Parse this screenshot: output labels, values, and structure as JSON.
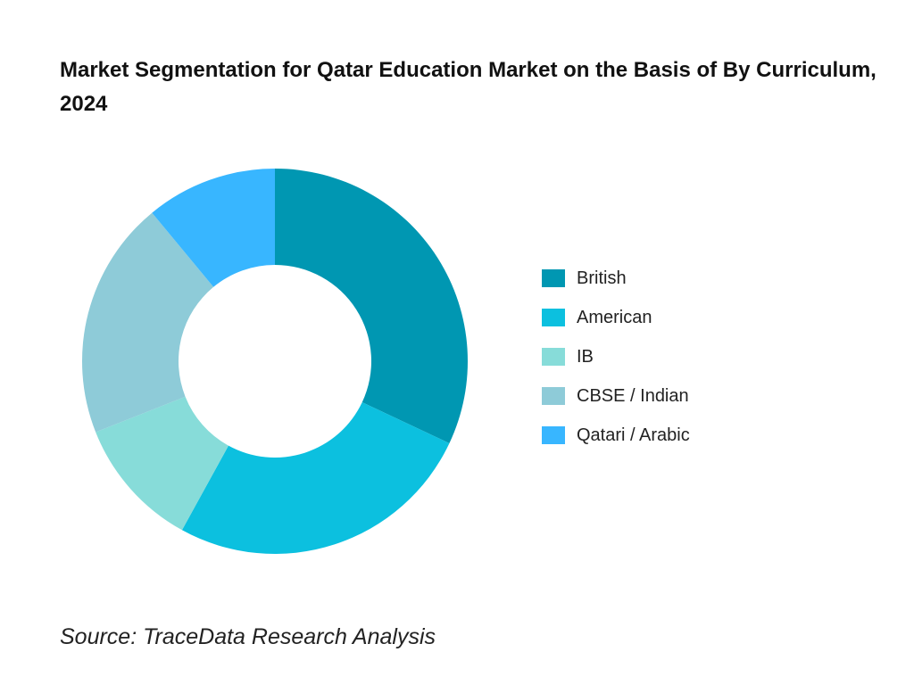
{
  "chart_data": {
    "type": "pie",
    "title": "Market Segmentation for Qatar Education Market on the Basis of By Curriculum, 2024",
    "categories": [
      "British",
      "American",
      "IB",
      "CBSE / Indian",
      "Qatari / Arabic"
    ],
    "values": [
      32,
      26,
      11,
      20,
      11
    ],
    "colors": [
      "#0097b2",
      "#0cc0df",
      "#87dcd9",
      "#8ecbd8",
      "#38b6ff"
    ],
    "legend_position": "right",
    "donut": true
  },
  "footer": {
    "source": "Source: TraceData Research Analysis"
  }
}
